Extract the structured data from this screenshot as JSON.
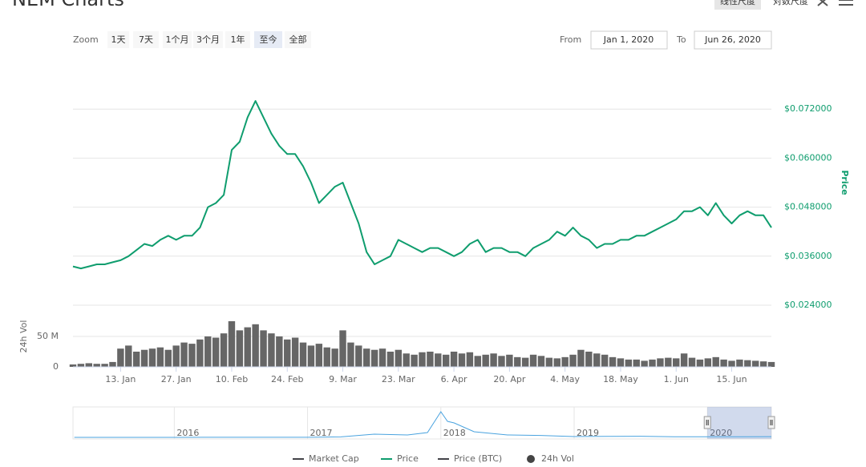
{
  "header": {
    "title": "NEM Charts",
    "scale_buttons": [
      "线性尺度",
      "对数尺度"
    ]
  },
  "toolbar": {
    "zoom_label": "Zoom",
    "zoom_buttons": [
      "1天",
      "7天",
      "1个月",
      "3个月",
      "1年",
      "至今",
      "全部"
    ],
    "selected_zoom": "至今",
    "from_label": "From",
    "from": "Jan 1, 2020",
    "to_label": "To",
    "to": "Jun 26, 2020"
  },
  "chart_data": [
    {
      "type": "line",
      "y_title": "Price",
      "y2_title": "24h Vol",
      "x": [
        "1. Jan",
        "3. Jan",
        "5. Jan",
        "7. Jan",
        "9. Jan",
        "11. Jan",
        "13. Jan",
        "15. Jan",
        "17. Jan",
        "19. Jan",
        "21. Jan",
        "23. Jan",
        "25. Jan",
        "27. Jan",
        "29. Jan",
        "31. Jan",
        "2. Feb",
        "4. Feb",
        "6. Feb",
        "8. Feb",
        "10. Feb",
        "12. Feb",
        "14. Feb",
        "16. Feb",
        "18. Feb",
        "20. Feb",
        "22. Feb",
        "24. Feb",
        "26. Feb",
        "28. Feb",
        "1. Mar",
        "3. Mar",
        "5. Mar",
        "7. Mar",
        "9. Mar",
        "11. Mar",
        "13. Mar",
        "15. Mar",
        "17. Mar",
        "19. Mar",
        "21. Mar",
        "23. Mar",
        "25. Mar",
        "27. Mar",
        "29. Mar",
        "31. Mar",
        "2. Apr",
        "4. Apr",
        "6. Apr",
        "8. Apr",
        "10. Apr",
        "12. Apr",
        "14. Apr",
        "16. Apr",
        "18. Apr",
        "20. Apr",
        "22. Apr",
        "24. Apr",
        "26. Apr",
        "28. Apr",
        "30. Apr",
        "2. May",
        "4. May",
        "6. May",
        "8. May",
        "10. May",
        "12. May",
        "14. May",
        "16. May",
        "18. May",
        "20. May",
        "22. May",
        "24. May",
        "26. May",
        "28. May",
        "30. May",
        "1. Jun",
        "3. Jun",
        "5. Jun",
        "7. Jun",
        "9. Jun",
        "11. Jun",
        "13. Jun",
        "15. Jun",
        "17. Jun",
        "19. Jun",
        "21. Jun",
        "23. Jun",
        "25. Jun"
      ],
      "xticks": [
        "13. Jan",
        "27. Jan",
        "10. Feb",
        "24. Feb",
        "9. Mar",
        "23. Mar",
        "6. Apr",
        "20. Apr",
        "4. May",
        "18. May",
        "1. Jun",
        "15. Jun"
      ],
      "ylim": [
        0.024,
        0.084
      ],
      "yticks": [
        {
          "value": 0.024,
          "label": "$0.024000"
        },
        {
          "value": 0.036,
          "label": "$0.036000"
        },
        {
          "value": 0.048,
          "label": "$0.048000"
        },
        {
          "value": 0.06,
          "label": "$0.060000"
        },
        {
          "value": 0.072,
          "label": "$0.072000"
        }
      ],
      "y2lim": [
        0,
        100
      ],
      "y2ticks": [
        0,
        {
          "value": 50,
          "label": "50 M"
        }
      ],
      "grid": true,
      "legend": "bottom",
      "series": [
        {
          "name": "Market Cap",
          "color": "#434348",
          "visible": false
        },
        {
          "name": "Price",
          "color": "#0f9d6e",
          "values": [
            0.0335,
            0.033,
            0.0335,
            0.034,
            0.034,
            0.0345,
            0.035,
            0.036,
            0.0375,
            0.039,
            0.0385,
            0.04,
            0.041,
            0.04,
            0.041,
            0.041,
            0.043,
            0.048,
            0.049,
            0.051,
            0.062,
            0.064,
            0.07,
            0.074,
            0.07,
            0.066,
            0.063,
            0.061,
            0.061,
            0.058,
            0.054,
            0.049,
            0.051,
            0.053,
            0.054,
            0.049,
            0.044,
            0.037,
            0.034,
            0.035,
            0.036,
            0.04,
            0.039,
            0.038,
            0.037,
            0.038,
            0.038,
            0.037,
            0.036,
            0.037,
            0.039,
            0.04,
            0.037,
            0.038,
            0.038,
            0.037,
            0.037,
            0.036,
            0.038,
            0.039,
            0.04,
            0.042,
            0.041,
            0.043,
            0.041,
            0.04,
            0.038,
            0.039,
            0.039,
            0.04,
            0.04,
            0.041,
            0.041,
            0.042,
            0.043,
            0.044,
            0.045,
            0.047,
            0.047,
            0.048,
            0.046,
            0.049,
            0.046,
            0.044,
            0.046,
            0.047,
            0.046,
            0.046,
            0.043
          ]
        },
        {
          "name": "Price (BTC)",
          "color": "#434348",
          "visible": false
        },
        {
          "name": "24h Vol",
          "color": "#666666",
          "type": "bar",
          "axis": "y2",
          "values": [
            4,
            5,
            6,
            5,
            5,
            8,
            30,
            35,
            25,
            28,
            30,
            32,
            28,
            35,
            40,
            38,
            45,
            50,
            48,
            55,
            75,
            60,
            65,
            70,
            60,
            55,
            50,
            45,
            48,
            40,
            35,
            38,
            32,
            30,
            60,
            40,
            35,
            30,
            28,
            30,
            25,
            28,
            22,
            20,
            24,
            25,
            22,
            20,
            25,
            22,
            24,
            18,
            20,
            22,
            18,
            20,
            16,
            15,
            20,
            18,
            15,
            14,
            16,
            20,
            28,
            25,
            22,
            20,
            16,
            14,
            12,
            12,
            10,
            12,
            14,
            15,
            14,
            22,
            15,
            12,
            14,
            16,
            12,
            10,
            12,
            11,
            10,
            9,
            8
          ]
        }
      ]
    },
    {
      "type": "line",
      "color": "#4aa3df",
      "x": [
        2015.25,
        2015.5,
        2015.75,
        2016,
        2016.25,
        2016.5,
        2016.75,
        2017,
        2017.25,
        2017.5,
        2017.75,
        2017.9,
        2018,
        2018.05,
        2018.1,
        2018.25,
        2018.5,
        2018.75,
        2019,
        2019.25,
        2019.5,
        2019.75,
        2020,
        2020.25,
        2020.48
      ],
      "values": [
        0.0002,
        0.0002,
        0.0002,
        0.0002,
        0.004,
        0.005,
        0.006,
        0.006,
        0.03,
        0.2,
        0.15,
        0.3,
        1.6,
        1.0,
        0.9,
        0.35,
        0.15,
        0.12,
        0.05,
        0.06,
        0.07,
        0.04,
        0.04,
        0.035,
        0.045
      ],
      "xlim": [
        2015.24,
        2020.48
      ],
      "ylim": [
        0,
        1.8
      ],
      "xticks": [
        2016,
        2017,
        2018,
        2019,
        2020
      ],
      "selection": [
        2020,
        2020.48
      ]
    }
  ]
}
